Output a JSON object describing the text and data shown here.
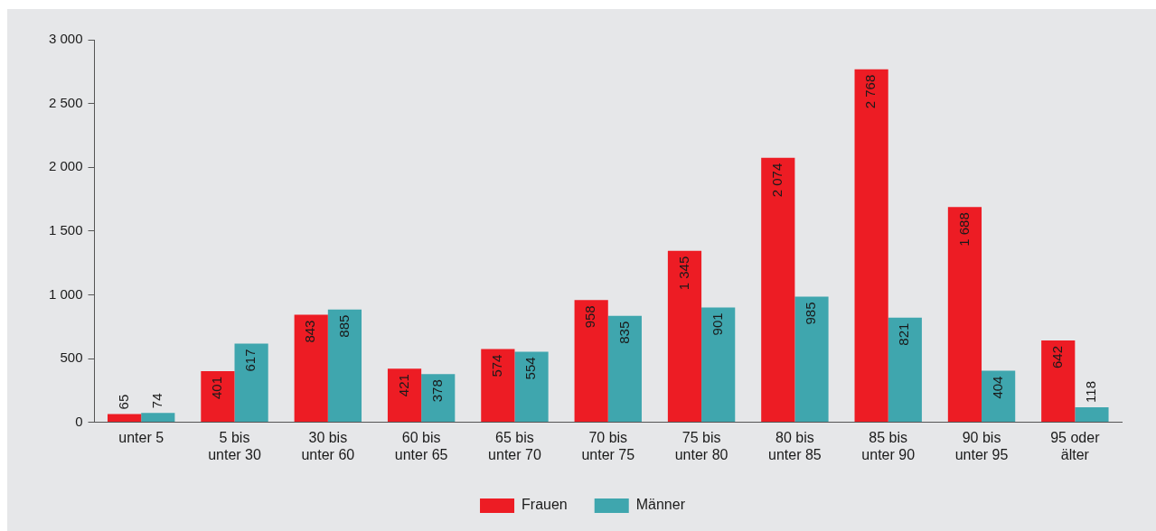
{
  "chart_data": {
    "type": "bar",
    "categories": [
      "unter 5",
      "5 bis unter 30",
      "30 bis unter 60",
      "60 bis unter 65",
      "65 bis unter 70",
      "70 bis unter 75",
      "75 bis unter 80",
      "80 bis unter 85",
      "85 bis unter 90",
      "90 bis unter 95",
      "95 oder älter"
    ],
    "series": [
      {
        "name": "Frauen",
        "color": "#ed1c24",
        "values": [
          65,
          401,
          843,
          421,
          574,
          958,
          1345,
          2074,
          2768,
          1688,
          642
        ],
        "value_labels": [
          "65",
          "401",
          "843",
          "421",
          "574",
          "958",
          "1 345",
          "2 074",
          "2 768",
          "1 688",
          "642"
        ]
      },
      {
        "name": "Männer",
        "color": "#3fa6ae",
        "values": [
          74,
          617,
          885,
          378,
          554,
          835,
          901,
          985,
          821,
          404,
          118
        ],
        "value_labels": [
          "74",
          "617",
          "885",
          "378",
          "554",
          "835",
          "901",
          "985",
          "821",
          "404",
          "118"
        ]
      }
    ],
    "ylim": [
      0,
      3000
    ],
    "yticks": [
      {
        "value": 0,
        "label": "0"
      },
      {
        "value": 500,
        "label": "500"
      },
      {
        "value": 1000,
        "label": "1 000"
      },
      {
        "value": 1500,
        "label": "1 500"
      },
      {
        "value": 2000,
        "label": "2 000"
      },
      {
        "value": 2500,
        "label": "2 500"
      },
      {
        "value": 3000,
        "label": "3 000"
      }
    ],
    "grid": false,
    "legend": "bottom"
  }
}
